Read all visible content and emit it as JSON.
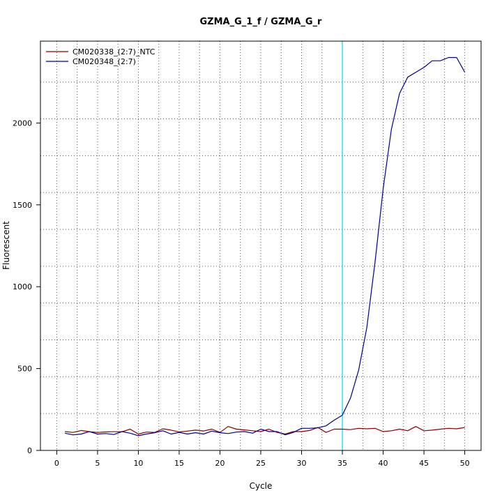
{
  "chart_data": {
    "type": "line",
    "title": "GZMA_G_1_f / GZMA_G_r",
    "xlabel": "Cycle",
    "ylabel": "Fluorescent",
    "xlim": [
      -2,
      52
    ],
    "ylim": [
      0,
      2500
    ],
    "x_ticks": [
      0,
      5,
      10,
      15,
      20,
      25,
      30,
      35,
      40,
      45,
      50
    ],
    "x_tick_labels": [
      "0",
      "5",
      "10",
      "15",
      "20",
      "25",
      "30",
      "35",
      "40",
      "45",
      "50"
    ],
    "y_ticks": [
      0,
      500,
      1000,
      1500,
      2000
    ],
    "y_tick_labels": [
      "0",
      "500",
      "1000",
      "1500",
      "2000"
    ],
    "x_grid": [
      0,
      2.5,
      5,
      7.5,
      10,
      12.5,
      15,
      17.5,
      20,
      22.5,
      25,
      27.5,
      30,
      32.5,
      35,
      37.5,
      40,
      42.5,
      45,
      47.5,
      50
    ],
    "y_grid": [
      0,
      225,
      450,
      675,
      900,
      1125,
      1350,
      1575,
      1800,
      2025,
      2250
    ],
    "grid": true,
    "legend_position": "top-left",
    "threshold": {
      "x": 35,
      "color": "#00e5ee"
    },
    "x": [
      1,
      2,
      3,
      4,
      5,
      6,
      7,
      8,
      9,
      10,
      11,
      12,
      13,
      14,
      15,
      16,
      17,
      18,
      19,
      20,
      21,
      22,
      23,
      24,
      25,
      26,
      27,
      28,
      29,
      30,
      31,
      32,
      33,
      34,
      35,
      36,
      37,
      38,
      39,
      40,
      41,
      42,
      43,
      44,
      45,
      46,
      47,
      48,
      49,
      50
    ],
    "series": [
      {
        "name": "CM020338_(2:7)_NTC",
        "color": "#8b0000",
        "values": [
          115,
          110,
          122,
          114,
          110,
          113,
          114,
          114,
          130,
          100,
          112,
          110,
          132,
          124,
          113,
          118,
          124,
          119,
          130,
          110,
          146,
          130,
          125,
          120,
          115,
          130,
          110,
          100,
          115,
          115,
          122,
          140,
          110,
          130,
          130,
          127,
          135,
          132,
          135,
          115,
          120,
          130,
          120,
          146,
          120,
          124,
          130,
          135,
          132,
          140
        ]
      },
      {
        "name": "CM020348_(2:7)",
        "color": "#00008b",
        "values": [
          105,
          95,
          100,
          115,
          100,
          103,
          97,
          115,
          105,
          90,
          100,
          108,
          120,
          100,
          110,
          100,
          108,
          100,
          118,
          108,
          103,
          112,
          115,
          105,
          130,
          115,
          115,
          95,
          110,
          135,
          135,
          138,
          150,
          185,
          215,
          320,
          490,
          750,
          1150,
          1600,
          1960,
          2180,
          2280,
          2310,
          2340,
          2380,
          2380,
          2400,
          2400,
          2310
        ]
      }
    ]
  }
}
